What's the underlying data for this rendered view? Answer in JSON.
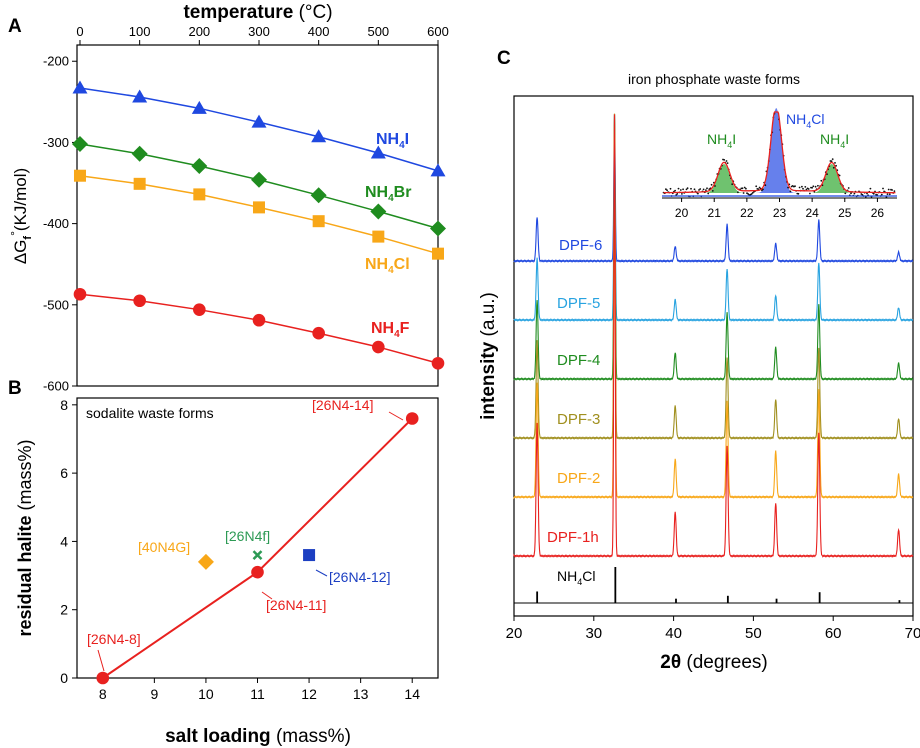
{
  "panels": {
    "a": {
      "letter": "A"
    },
    "b": {
      "letter": "B"
    },
    "c": {
      "letter": "C"
    }
  },
  "chart_data": [
    {
      "type": "line",
      "panel": "A",
      "title": "",
      "xlabel_bold": "temperature",
      "xlabel_unit": "(°C)",
      "ylabel_main": "ΔG",
      "ylabel_sub": "f",
      "ylabel_sup": "°",
      "ylabel_unit": "(KJ/mol)",
      "xlim": [
        -5,
        600
      ],
      "ylim": [
        -600,
        -180
      ],
      "xticks": [
        0,
        100,
        200,
        300,
        400,
        500,
        600
      ],
      "yticks": [
        -200,
        -300,
        -400,
        -500,
        -600
      ],
      "x": [
        0,
        100,
        200,
        300,
        400,
        500,
        600
      ],
      "series": [
        {
          "name": "NH4I",
          "label_main": "NH",
          "label_sub": "4",
          "label_end": "I",
          "color": "#1f48e0",
          "marker": "triangle",
          "values": [
            -233,
            -244,
            -258,
            -275,
            -293,
            -313,
            -335
          ]
        },
        {
          "name": "NH4Br",
          "label_main": "NH",
          "label_sub": "4",
          "label_end": "Br",
          "color": "#1f8c1f",
          "marker": "diamond",
          "values": [
            -302,
            -314,
            -329,
            -346,
            -365,
            -385,
            -406
          ]
        },
        {
          "name": "NH4Cl",
          "label_main": "NH",
          "label_sub": "4",
          "label_end": "Cl",
          "color": "#f8a718",
          "marker": "square",
          "values": [
            -341,
            -351,
            -364,
            -380,
            -397,
            -416,
            -437
          ]
        },
        {
          "name": "NH4F",
          "label_main": "NH",
          "label_sub": "4",
          "label_end": "F",
          "color": "#e8211f",
          "marker": "circle",
          "values": [
            -487,
            -495,
            -506,
            -519,
            -535,
            -552,
            -572
          ]
        }
      ]
    },
    {
      "type": "scatter",
      "panel": "B",
      "title": "sodalite waste forms",
      "xlabel_bold": "salt loading",
      "xlabel_unit": "(mass%)",
      "ylabel_bold": "residual halite",
      "ylabel_unit": "(mass%)",
      "xlim": [
        7.5,
        14.5
      ],
      "ylim": [
        0,
        8.2
      ],
      "xticks": [
        8,
        9,
        10,
        11,
        12,
        13,
        14
      ],
      "yticks": [
        0,
        2,
        4,
        6,
        8
      ],
      "line": {
        "name": "26N4 series",
        "color": "#e8211f",
        "x": [
          8,
          11,
          14
        ],
        "y": [
          0,
          3.1,
          7.6
        ]
      },
      "points": [
        {
          "label": "[26N4-8]",
          "x": 8,
          "y": 0,
          "color": "#e8211f",
          "marker": "circle"
        },
        {
          "label": "[26N4-11]",
          "x": 11,
          "y": 3.1,
          "color": "#e8211f",
          "marker": "circle"
        },
        {
          "label": "[26N4-14]",
          "x": 14,
          "y": 7.6,
          "color": "#e8211f",
          "marker": "circle"
        },
        {
          "label": "[40N4G]",
          "x": 10,
          "y": 3.4,
          "color": "#f8a718",
          "marker": "diamond"
        },
        {
          "label": "[26N4f]",
          "x": 11,
          "y": 3.6,
          "color": "#2d9a55",
          "marker": "cross"
        },
        {
          "label": "[26N4-12]",
          "x": 12,
          "y": 3.6,
          "color": "#1c3fc2",
          "marker": "square"
        }
      ]
    },
    {
      "type": "line",
      "panel": "C",
      "title": "iron phosphate waste forms",
      "xlabel_bold": "2θ",
      "xlabel_unit": "(degrees)",
      "ylabel_bold": "intensity",
      "ylabel_unit": "(a.u.)",
      "xlim": [
        20,
        70
      ],
      "xticks": [
        20,
        30,
        40,
        50,
        60,
        70
      ],
      "peak_positions": [
        22.9,
        32.6,
        40.2,
        46.7,
        52.8,
        58.2,
        68.2
      ],
      "peak_heights": [
        0.3,
        1.0,
        0.1,
        0.25,
        0.12,
        0.28,
        0.06
      ],
      "series": [
        {
          "name": "DPF-6",
          "color": "#1f48e0"
        },
        {
          "name": "DPF-5",
          "color": "#28a3e0"
        },
        {
          "name": "DPF-4",
          "color": "#1f8c1f"
        },
        {
          "name": "DPF-3",
          "color": "#a08f1e"
        },
        {
          "name": "DPF-2",
          "color": "#f8a718"
        },
        {
          "name": "DPF-1h",
          "color": "#e8211f"
        }
      ],
      "reference": {
        "name_main": "NH",
        "name_sub": "4",
        "name_end": "Cl",
        "color": "#000000",
        "sticks": [
          22.9,
          32.7,
          40.3,
          46.8,
          52.9,
          58.3,
          68.3
        ],
        "heights": [
          0.32,
          1.0,
          0.12,
          0.2,
          0.12,
          0.3,
          0.08
        ]
      },
      "inset": {
        "xlim": [
          19.4,
          26.6
        ],
        "xticks": [
          20,
          21,
          22,
          23,
          24,
          25,
          26
        ],
        "peaks": [
          {
            "x": 21.3,
            "label_main": "NH",
            "label_sub": "4",
            "label_end": "I",
            "color": "#3fae3f"
          },
          {
            "x": 22.9,
            "label_main": "NH",
            "label_sub": "4",
            "label_end": "Cl",
            "color": "#3355e6"
          },
          {
            "x": 24.6,
            "label_main": "NH",
            "label_sub": "4",
            "label_end": "I",
            "color": "#3fae3f"
          }
        ]
      }
    }
  ]
}
